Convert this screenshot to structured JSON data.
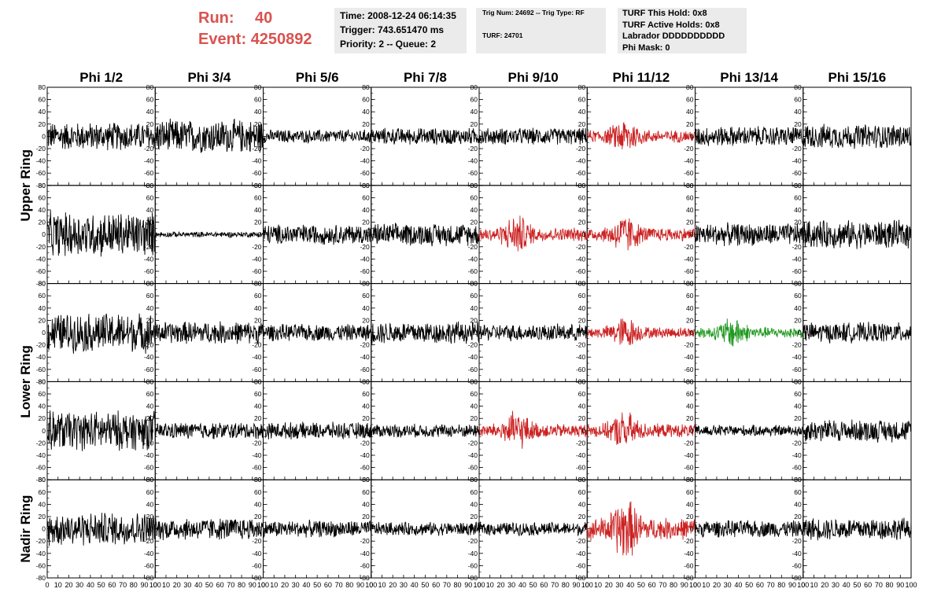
{
  "header": {
    "run_label": "Run:",
    "run_value": "40",
    "event_label": "Event:",
    "event_value": "4250892",
    "time_line": "Time: 2008-12-24 06:14:35",
    "trigger_line": "Trigger: 743.651470 ms",
    "priority_line": "Priority: 2 -- Queue: 2",
    "trig_line": "Trig Num: 24692 -- Trig Type: RF",
    "turf_line": "TURF: 24701",
    "turf_hold_line": "TURF This Hold: 0x8",
    "turf_active_line": "TURF Active Holds: 0x8",
    "labrador_line": "Labrador DDDDDDDDDD",
    "phi_mask_line": "Phi Mask: 0"
  },
  "colors": {
    "header_red": "#d9534f",
    "trace_default": "#000000",
    "trace_red": "#cc2222",
    "trace_green": "#229922",
    "info_bg": "#ebebeb"
  },
  "chart_data": {
    "type": "line",
    "columns": [
      "Phi 1/2",
      "Phi 3/4",
      "Phi 5/6",
      "Phi 7/8",
      "Phi 9/10",
      "Phi 11/12",
      "Phi 13/14",
      "Phi 15/16"
    ],
    "ring_labels": [
      "Upper Ring",
      "Lower Ring",
      "Nadir Ring"
    ],
    "y_ticks": [
      80,
      60,
      40,
      20,
      0,
      -20,
      -40,
      -60,
      -80
    ],
    "x_ticks": [
      0,
      10,
      20,
      30,
      40,
      50,
      60,
      70,
      80,
      90,
      100
    ],
    "xlim": [
      0,
      100
    ],
    "ylim": [
      -80,
      80
    ],
    "grid": false,
    "row_amplitudes": [
      [
        25,
        30,
        12,
        15,
        15,
        20,
        18,
        22
      ],
      [
        40,
        5,
        18,
        20,
        22,
        22,
        20,
        25
      ],
      [
        35,
        20,
        15,
        20,
        15,
        18,
        18,
        18
      ],
      [
        35,
        15,
        15,
        12,
        22,
        22,
        10,
        20
      ],
      [
        30,
        20,
        15,
        12,
        12,
        35,
        15,
        20
      ]
    ],
    "highlighted_traces": [
      {
        "row": 0,
        "col": 5,
        "color": "red"
      },
      {
        "row": 1,
        "col": 4,
        "color": "red"
      },
      {
        "row": 1,
        "col": 5,
        "color": "red"
      },
      {
        "row": 2,
        "col": 5,
        "color": "red"
      },
      {
        "row": 2,
        "col": 6,
        "color": "green"
      },
      {
        "row": 3,
        "col": 4,
        "color": "red"
      },
      {
        "row": 3,
        "col": 5,
        "color": "red"
      },
      {
        "row": 4,
        "col": 5,
        "color": "red"
      }
    ]
  }
}
